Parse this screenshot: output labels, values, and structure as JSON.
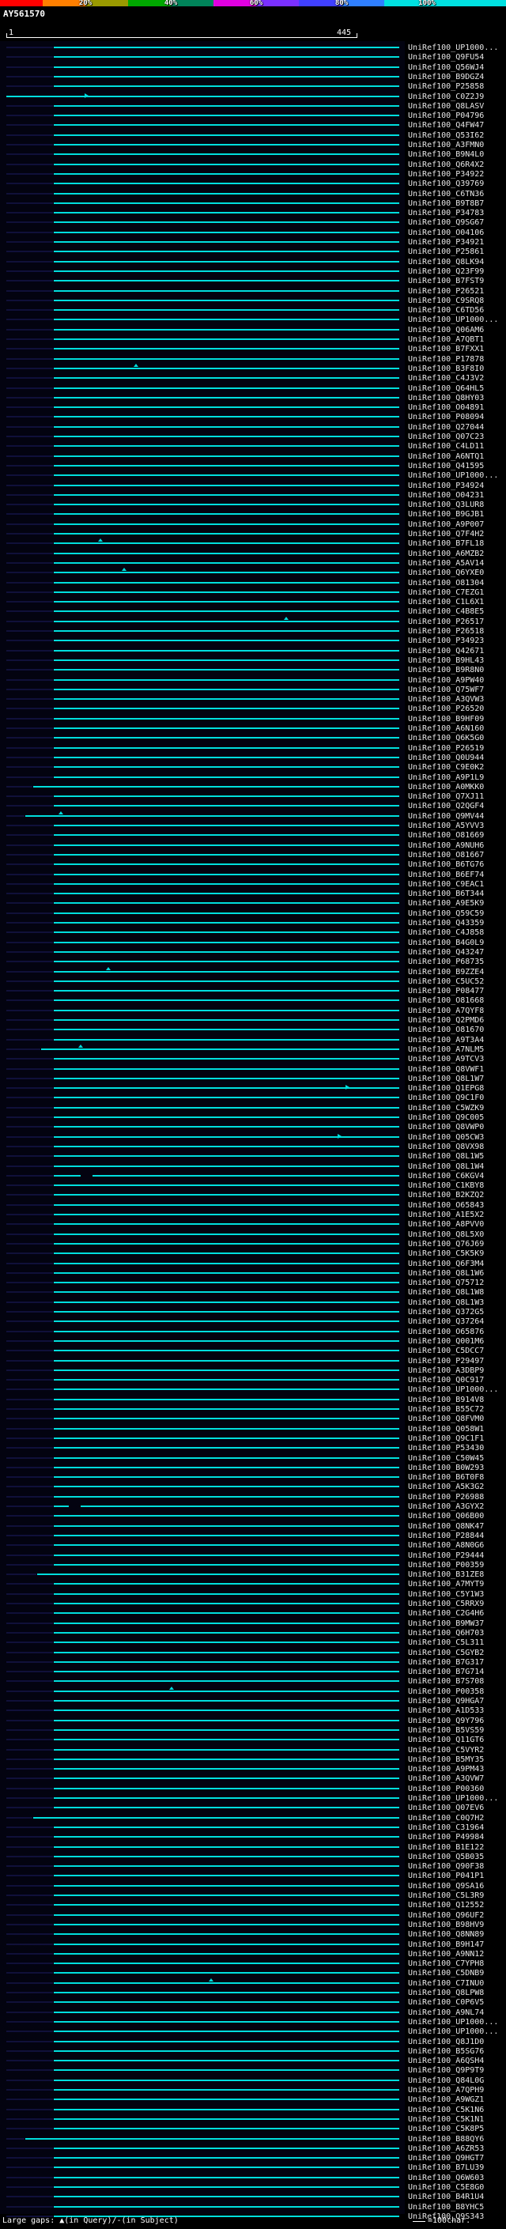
{
  "title": {
    "accession": "AY561570"
  },
  "ruler": {
    "start": "1",
    "end": "445"
  },
  "scale": {
    "tick_labels": [
      "20%",
      "40%",
      "60%",
      "80%",
      "100%"
    ],
    "segment_colors": [
      "#ff0000",
      "#ff7f00",
      "#9a9a00",
      "#00a800",
      "#00845a",
      "#e000e0",
      "#7a30ff",
      "#4040ff",
      "#2f7fff",
      "#00e0e0"
    ]
  },
  "legend": {
    "gaps": "Large gaps: ▲(in Query)/-(in Subject)",
    "scale_suffix": "=100char."
  },
  "colors": {
    "background": "#000000",
    "bar": "#00dede",
    "ruler": "#ffffff",
    "label_text": "#e6e6e6",
    "left_fill": "#10103a"
  },
  "chart_data": {
    "type": "bar",
    "subtype": "blast-alignment-hit-overview",
    "orientation": "horizontal",
    "title": "BLAST graphical hit overview for query AY561570 vs UniRef100",
    "x_domain": [
      1,
      445
    ],
    "x_unit": "query position (chars)",
    "note": "Each cyan horizontal bar is one database hit aligned to the query; bars may extend beyond the query ends (subject overhang). Identity color scale shown at top.",
    "query": {
      "accession": "AY561570",
      "length": 445
    },
    "default_hit": {
      "start": 61,
      "end": 498
    },
    "hits": [
      {
        "id": "UniRef100_UP1000..."
      },
      {
        "id": "UniRef100_Q9FU54"
      },
      {
        "id": "UniRef100_Q56WJ4"
      },
      {
        "id": "UniRef100_B9DGZ4"
      },
      {
        "id": "UniRef100_P25858"
      },
      {
        "id": "UniRef100_C0Z2J9",
        "start": 1,
        "marks": [
          {
            "t": "arrow",
            "p": 100
          }
        ]
      },
      {
        "id": "UniRef100_Q8LASV"
      },
      {
        "id": "UniRef100_P04796"
      },
      {
        "id": "UniRef100_Q4FW47"
      },
      {
        "id": "UniRef100_Q53I62"
      },
      {
        "id": "UniRef100_A3FMN0"
      },
      {
        "id": "UniRef100_B9N4L0"
      },
      {
        "id": "UniRef100_Q6R4X2"
      },
      {
        "id": "UniRef100_P34922"
      },
      {
        "id": "UniRef100_Q39769"
      },
      {
        "id": "UniRef100_C6TN36"
      },
      {
        "id": "UniRef100_B9T8B7"
      },
      {
        "id": "UniRef100_P34783"
      },
      {
        "id": "UniRef100_Q9SG67"
      },
      {
        "id": "UniRef100_O04106"
      },
      {
        "id": "UniRef100_P34921"
      },
      {
        "id": "UniRef100_P25861"
      },
      {
        "id": "UniRef100_Q8LK94"
      },
      {
        "id": "UniRef100_Q23F99"
      },
      {
        "id": "UniRef100_B7FST9"
      },
      {
        "id": "UniRef100_P26521"
      },
      {
        "id": "UniRef100_C9SRQ8"
      },
      {
        "id": "UniRef100_C6TD56"
      },
      {
        "id": "UniRef100_UP1000..."
      },
      {
        "id": "UniRef100_Q06AM6"
      },
      {
        "id": "UniRef100_A7QBT1"
      },
      {
        "id": "UniRef100_B7FXX1"
      },
      {
        "id": "UniRef100_P17878"
      },
      {
        "id": "UniRef100_B3F8I0",
        "marks": [
          {
            "t": "caret",
            "p": 165
          }
        ]
      },
      {
        "id": "UniRef100_C4J3V2"
      },
      {
        "id": "UniRef100_Q64HL5"
      },
      {
        "id": "UniRef100_Q8HY03"
      },
      {
        "id": "UniRef100_O04891"
      },
      {
        "id": "UniRef100_P08094"
      },
      {
        "id": "UniRef100_Q27044"
      },
      {
        "id": "UniRef100_Q07C23"
      },
      {
        "id": "UniRef100_C4LD11"
      },
      {
        "id": "UniRef100_A6NTQ1"
      },
      {
        "id": "UniRef100_Q41595"
      },
      {
        "id": "UniRef100_UP1000..."
      },
      {
        "id": "UniRef100_P34924"
      },
      {
        "id": "UniRef100_O04231"
      },
      {
        "id": "UniRef100_Q3LUR8"
      },
      {
        "id": "UniRef100_B9GJB1"
      },
      {
        "id": "UniRef100_A9P007"
      },
      {
        "id": "UniRef100_Q7F4H2"
      },
      {
        "id": "UniRef100_B7FL18",
        "marks": [
          {
            "t": "caret",
            "p": 120
          }
        ]
      },
      {
        "id": "UniRef100_A6MZB2"
      },
      {
        "id": "UniRef100_A5AV14"
      },
      {
        "id": "UniRef100_Q6YXE0",
        "marks": [
          {
            "t": "caret",
            "p": 150
          }
        ]
      },
      {
        "id": "UniRef100_O81304"
      },
      {
        "id": "UniRef100_C7EZG1"
      },
      {
        "id": "UniRef100_C1L6X1"
      },
      {
        "id": "UniRef100_C4B8E5"
      },
      {
        "id": "UniRef100_P26517",
        "marks": [
          {
            "t": "caret",
            "p": 355
          }
        ]
      },
      {
        "id": "UniRef100_P26518"
      },
      {
        "id": "UniRef100_P34923"
      },
      {
        "id": "UniRef100_Q42671"
      },
      {
        "id": "UniRef100_B9HL43"
      },
      {
        "id": "UniRef100_B9R8N0"
      },
      {
        "id": "UniRef100_A9PW40"
      },
      {
        "id": "UniRef100_Q75WF7"
      },
      {
        "id": "UniRef100_A3QVW3"
      },
      {
        "id": "UniRef100_P26520"
      },
      {
        "id": "UniRef100_B9HF09"
      },
      {
        "id": "UniRef100_A6N160"
      },
      {
        "id": "UniRef100_Q6K5G0"
      },
      {
        "id": "UniRef100_P26519"
      },
      {
        "id": "UniRef100_Q0U944"
      },
      {
        "id": "UniRef100_C9E0K2"
      },
      {
        "id": "UniRef100_A9P1L9"
      },
      {
        "id": "UniRef100_A0MKK0",
        "start": 35
      },
      {
        "id": "UniRef100_Q7XJ11"
      },
      {
        "id": "UniRef100_Q2QGF4"
      },
      {
        "id": "UniRef100_Q9MV44",
        "start": 25,
        "marks": [
          {
            "t": "caret",
            "p": 70
          }
        ]
      },
      {
        "id": "UniRef100_A5YVV3"
      },
      {
        "id": "UniRef100_O81669"
      },
      {
        "id": "UniRef100_A9NUH6"
      },
      {
        "id": "UniRef100_O81667"
      },
      {
        "id": "UniRef100_B6TG76"
      },
      {
        "id": "UniRef100_B6EF74"
      },
      {
        "id": "UniRef100_C9EAC1"
      },
      {
        "id": "UniRef100_B6T344"
      },
      {
        "id": "UniRef100_A9E5K9"
      },
      {
        "id": "UniRef100_Q59C59"
      },
      {
        "id": "UniRef100_Q43359"
      },
      {
        "id": "UniRef100_C4J858"
      },
      {
        "id": "UniRef100_B4G0L9"
      },
      {
        "id": "UniRef100_Q43247"
      },
      {
        "id": "UniRef100_P68735"
      },
      {
        "id": "UniRef100_B9ZZE4",
        "marks": [
          {
            "t": "caret",
            "p": 130
          }
        ]
      },
      {
        "id": "UniRef100_C5UC52"
      },
      {
        "id": "UniRef100_P08477"
      },
      {
        "id": "UniRef100_O81668"
      },
      {
        "id": "UniRef100_A7QYF8"
      },
      {
        "id": "UniRef100_Q2PMD6"
      },
      {
        "id": "UniRef100_O81670"
      },
      {
        "id": "UniRef100_A9T3A4"
      },
      {
        "id": "UniRef100_A7NLM5",
        "start": 45,
        "marks": [
          {
            "t": "caret",
            "p": 95
          }
        ]
      },
      {
        "id": "UniRef100_A9TCV3"
      },
      {
        "id": "UniRef100_Q8VWF1"
      },
      {
        "id": "UniRef100_Q8L1W7"
      },
      {
        "id": "UniRef100_Q1EPG8",
        "marks": [
          {
            "t": "arrow",
            "p": 430
          }
        ]
      },
      {
        "id": "UniRef100_Q9C1F0"
      },
      {
        "id": "UniRef100_C5WZK9"
      },
      {
        "id": "UniRef100_Q9C005"
      },
      {
        "id": "UniRef100_Q8VWP0"
      },
      {
        "id": "UniRef100_Q05CW3",
        "marks": [
          {
            "t": "arrow",
            "p": 420
          }
        ]
      },
      {
        "id": "UniRef100_Q8VX98"
      },
      {
        "id": "UniRef100_Q8L1W5"
      },
      {
        "id": "UniRef100_Q8L1W4"
      },
      {
        "id": "UniRef100_C6KGV4",
        "gap": [
          95,
          110
        ]
      },
      {
        "id": "UniRef100_C1KBY8"
      },
      {
        "id": "UniRef100_B2KZQ2"
      },
      {
        "id": "UniRef100_O65843"
      },
      {
        "id": "UniRef100_A1E5X2"
      },
      {
        "id": "UniRef100_A8PVV0"
      },
      {
        "id": "UniRef100_Q8L5X0"
      },
      {
        "id": "UniRef100_Q76J69"
      },
      {
        "id": "UniRef100_C5K5K9"
      },
      {
        "id": "UniRef100_Q6F3M4"
      },
      {
        "id": "UniRef100_Q8L1W6"
      },
      {
        "id": "UniRef100_Q75712"
      },
      {
        "id": "UniRef100_Q8L1W8"
      },
      {
        "id": "UniRef100_Q8L1W3"
      },
      {
        "id": "UniRef100_Q372G5"
      },
      {
        "id": "UniRef100_Q37264"
      },
      {
        "id": "UniRef100_O65876"
      },
      {
        "id": "UniRef100_Q001M6"
      },
      {
        "id": "UniRef100_C5DCC7"
      },
      {
        "id": "UniRef100_P29497"
      },
      {
        "id": "UniRef100_A3DBP9"
      },
      {
        "id": "UniRef100_Q0C917"
      },
      {
        "id": "UniRef100_UP1000..."
      },
      {
        "id": "UniRef100_B914V8"
      },
      {
        "id": "UniRef100_B55C72"
      },
      {
        "id": "UniRef100_Q8FVM0"
      },
      {
        "id": "UniRef100_Q058W1"
      },
      {
        "id": "UniRef100_Q9C1F1"
      },
      {
        "id": "UniRef100_P53430"
      },
      {
        "id": "UniRef100_C50W45"
      },
      {
        "id": "UniRef100_B0W293"
      },
      {
        "id": "UniRef100_B6T0F8"
      },
      {
        "id": "UniRef100_A5K3G2"
      },
      {
        "id": "UniRef100_P26988"
      },
      {
        "id": "UniRef100_A3GYX2",
        "gap": [
          80,
          95
        ]
      },
      {
        "id": "UniRef100_Q06B00"
      },
      {
        "id": "UniRef100_Q8NK47"
      },
      {
        "id": "UniRef100_P28844"
      },
      {
        "id": "UniRef100_A8N0G6"
      },
      {
        "id": "UniRef100_P29444"
      },
      {
        "id": "UniRef100_P00359"
      },
      {
        "id": "UniRef100_B31ZE8",
        "start": 40
      },
      {
        "id": "UniRef100_A7MYT9"
      },
      {
        "id": "UniRef100_C5Y1W3"
      },
      {
        "id": "UniRef100_C5RRX9"
      },
      {
        "id": "UniRef100_C2G4H6"
      },
      {
        "id": "UniRef100_B9MW37"
      },
      {
        "id": "UniRef100_Q6H703"
      },
      {
        "id": "UniRef100_C5L311"
      },
      {
        "id": "UniRef100_C5GYB2"
      },
      {
        "id": "UniRef100_B7G317"
      },
      {
        "id": "UniRef100_B7G714"
      },
      {
        "id": "UniRef100_B7S708"
      },
      {
        "id": "UniRef100_P00358",
        "marks": [
          {
            "t": "caret",
            "p": 210
          }
        ]
      },
      {
        "id": "UniRef100_Q9HGA7"
      },
      {
        "id": "UniRef100_A1D533"
      },
      {
        "id": "UniRef100_Q9Y796"
      },
      {
        "id": "UniRef100_B5VS59"
      },
      {
        "id": "UniRef100_Q11GT6"
      },
      {
        "id": "UniRef100_C5VYR2"
      },
      {
        "id": "UniRef100_B5MY35"
      },
      {
        "id": "UniRef100_A9PM43"
      },
      {
        "id": "UniRef100_A3QVW7"
      },
      {
        "id": "UniRef100_P00360"
      },
      {
        "id": "UniRef100_UP1000..."
      },
      {
        "id": "UniRef100_Q07EV6"
      },
      {
        "id": "UniRef100_C0Q7H2",
        "start": 35
      },
      {
        "id": "UniRef100_C31964"
      },
      {
        "id": "UniRef100_P49984"
      },
      {
        "id": "UniRef100_B1E122"
      },
      {
        "id": "UniRef100_Q5B035"
      },
      {
        "id": "UniRef100_Q90F38"
      },
      {
        "id": "UniRef100_P041P1"
      },
      {
        "id": "UniRef100_Q9SA16"
      },
      {
        "id": "UniRef100_C5L3R9"
      },
      {
        "id": "UniRef100_Q12552"
      },
      {
        "id": "UniRef100_Q96UF2"
      },
      {
        "id": "UniRef100_B98HV9"
      },
      {
        "id": "UniRef100_Q8NN89"
      },
      {
        "id": "UniRef100_B9H147"
      },
      {
        "id": "UniRef100_A9NN12"
      },
      {
        "id": "UniRef100_C7YPH8"
      },
      {
        "id": "UniRef100_C5DNB9"
      },
      {
        "id": "UniRef100_C7INU0",
        "marks": [
          {
            "t": "caret",
            "p": 260
          }
        ]
      },
      {
        "id": "UniRef100_Q8LPW8"
      },
      {
        "id": "UniRef100_C0P6V5"
      },
      {
        "id": "UniRef100_A9NL74"
      },
      {
        "id": "UniRef100_UP1000..."
      },
      {
        "id": "UniRef100_UP1000..."
      },
      {
        "id": "UniRef100_Q8J1D0"
      },
      {
        "id": "UniRef100_B5SG76"
      },
      {
        "id": "UniRef100_A6QSH4"
      },
      {
        "id": "UniRef100_Q9P9T9"
      },
      {
        "id": "UniRef100_Q84L0G"
      },
      {
        "id": "UniRef100_A7QPH9"
      },
      {
        "id": "UniRef100_A9WGZ1"
      },
      {
        "id": "UniRef100_C5K1N6"
      },
      {
        "id": "UniRef100_C5K1N1"
      },
      {
        "id": "UniRef100_C5K8P5"
      },
      {
        "id": "UniRef100_B88QY6",
        "start": 25
      },
      {
        "id": "UniRef100_A6ZR53"
      },
      {
        "id": "UniRef100_Q9HGT7"
      },
      {
        "id": "UniRef100_B7LU39"
      },
      {
        "id": "UniRef100_Q6W603"
      },
      {
        "id": "UniRef100_C5E8G0"
      },
      {
        "id": "UniRef100_B4R1U4"
      },
      {
        "id": "UniRef100_B8YHC5"
      },
      {
        "id": "UniRef100_Q9S343"
      }
    ]
  }
}
